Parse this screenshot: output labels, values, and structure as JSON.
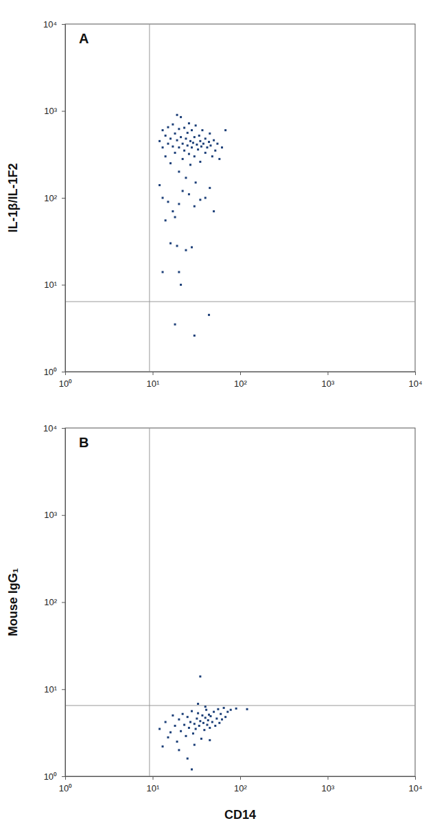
{
  "chart_data": [
    {
      "type": "scatter",
      "title": "A",
      "y_label": "IL-1β/IL-1F2",
      "x": [
        12,
        13,
        13,
        14,
        14,
        15,
        15,
        16,
        16,
        17,
        17,
        18,
        18,
        19,
        19,
        20,
        20,
        20,
        21,
        21,
        22,
        22,
        23,
        23,
        24,
        24,
        25,
        25,
        26,
        26,
        27,
        27,
        28,
        28,
        29,
        30,
        30,
        31,
        31,
        32,
        33,
        34,
        35,
        35,
        36,
        37,
        38,
        40,
        40,
        42,
        44,
        45,
        46,
        48,
        50,
        52,
        55,
        58,
        62,
        68,
        13,
        15,
        12,
        18,
        16,
        14,
        20,
        22,
        26,
        30,
        35,
        40,
        50,
        45,
        19,
        24,
        20,
        21,
        13,
        28,
        18,
        30,
        44,
        17
      ],
      "values": [
        450,
        600,
        380,
        520,
        300,
        650,
        420,
        480,
        250,
        700,
        390,
        550,
        330,
        900,
        460,
        620,
        380,
        200,
        500,
        850,
        420,
        280,
        640,
        350,
        480,
        170,
        400,
        560,
        320,
        720,
        450,
        240,
        380,
        600,
        430,
        500,
        300,
        680,
        150,
        410,
        360,
        520,
        450,
        260,
        390,
        600,
        420,
        480,
        330,
        380,
        440,
        550,
        400,
        300,
        460,
        350,
        420,
        280,
        380,
        600,
        100,
        90,
        140,
        60,
        30,
        55,
        85,
        120,
        110,
        80,
        95,
        100,
        70,
        130,
        28,
        25,
        14,
        10,
        14,
        27,
        3.5,
        2.6,
        4.5,
        70
      ],
      "color": "#1c3f78",
      "marker": "square",
      "log": true,
      "xlim": [
        1,
        10000
      ],
      "ylim": [
        1,
        10000
      ],
      "xticks": [
        {
          "value": 1,
          "label": "10⁰"
        },
        {
          "value": 10,
          "label": "10¹"
        },
        {
          "value": 100,
          "label": "10²"
        },
        {
          "value": 1000,
          "label": "10³"
        },
        {
          "value": 10000,
          "label": "10⁴"
        }
      ],
      "yticks": [
        {
          "value": 1,
          "label": "10⁰"
        },
        {
          "value": 10,
          "label": "10¹"
        },
        {
          "value": 100,
          "label": "10²"
        },
        {
          "value": 1000,
          "label": "10³"
        },
        {
          "value": 10000,
          "label": "10⁴"
        }
      ],
      "gates": {
        "x": 9.2,
        "y": 6.4
      }
    },
    {
      "type": "scatter",
      "title": "B",
      "y_label": "Mouse IgG₁",
      "x_label": "CD14",
      "x": [
        12,
        14,
        15,
        16,
        17,
        18,
        19,
        20,
        21,
        22,
        23,
        24,
        25,
        26,
        27,
        28,
        29,
        30,
        31,
        32,
        33,
        34,
        35,
        36,
        37,
        38,
        39,
        40,
        41,
        42,
        43,
        44,
        45,
        46,
        48,
        50,
        52,
        54,
        56,
        58,
        60,
        62,
        65,
        68,
        72,
        78,
        90,
        120,
        35,
        13,
        20,
        25,
        30,
        45,
        28,
        33,
        40
      ],
      "values": [
        3.5,
        4.2,
        2.8,
        3.2,
        5.0,
        3.8,
        2.5,
        4.5,
        3.3,
        5.2,
        3.9,
        2.9,
        4.8,
        3.6,
        4.2,
        5.6,
        3.1,
        4.0,
        3.5,
        4.6,
        5.3,
        3.8,
        4.3,
        2.7,
        5.0,
        4.1,
        3.4,
        4.7,
        5.8,
        3.9,
        4.4,
        5.1,
        3.6,
        4.9,
        4.2,
        5.5,
        3.8,
        4.6,
        5.9,
        4.1,
        5.2,
        4.5,
        6.1,
        4.8,
        5.5,
        5.8,
        6.0,
        5.9,
        14,
        2.2,
        2.0,
        1.6,
        2.3,
        2.6,
        1.2,
        6.8,
        6.3
      ],
      "color": "#1c3f78",
      "marker": "square",
      "log": true,
      "xlim": [
        1,
        10000
      ],
      "ylim": [
        1,
        10000
      ],
      "xticks": [
        {
          "value": 1,
          "label": "10⁰"
        },
        {
          "value": 10,
          "label": "10¹"
        },
        {
          "value": 100,
          "label": "10²"
        },
        {
          "value": 1000,
          "label": "10³"
        },
        {
          "value": 10000,
          "label": "10⁴"
        }
      ],
      "yticks": [
        {
          "value": 1,
          "label": "10⁰"
        },
        {
          "value": 10,
          "label": "10¹"
        },
        {
          "value": 100,
          "label": "10²"
        },
        {
          "value": 1000,
          "label": "10³"
        },
        {
          "value": 10000,
          "label": "10⁴"
        }
      ],
      "gates": {
        "x": 9.2,
        "y": 6.5
      }
    }
  ]
}
